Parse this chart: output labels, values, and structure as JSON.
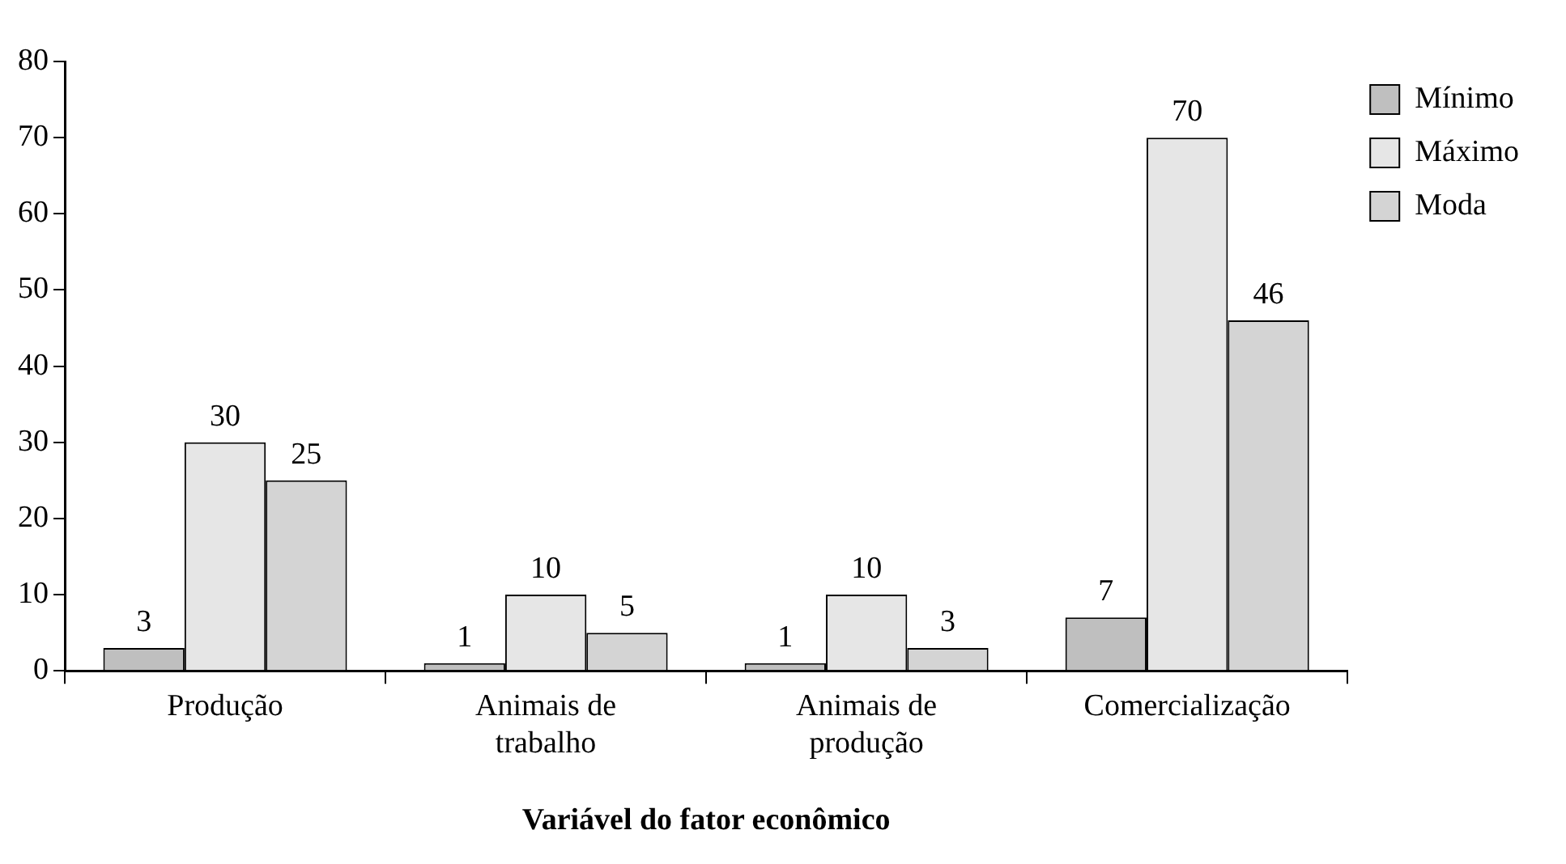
{
  "chart_data": {
    "type": "bar",
    "xlabel": "Variável do fator econômico",
    "categories": [
      "Produção",
      "Animais de trabalho",
      "Animais de produção",
      "Comercialização"
    ],
    "series": [
      {
        "name": "Mínimo",
        "color": "#bfbfbf",
        "values": [
          3,
          1,
          1,
          7
        ]
      },
      {
        "name": "Máximo",
        "color": "#e6e6e6",
        "values": [
          30,
          10,
          10,
          70
        ]
      },
      {
        "name": "Moda",
        "color": "#d4d4d4",
        "values": [
          25,
          5,
          3,
          46
        ]
      }
    ],
    "ylim": [
      0,
      80
    ],
    "yticks": [
      0,
      10,
      20,
      30,
      40,
      50,
      60,
      70,
      80
    ],
    "grid": false,
    "legend": "top right",
    "data_labels": true
  }
}
